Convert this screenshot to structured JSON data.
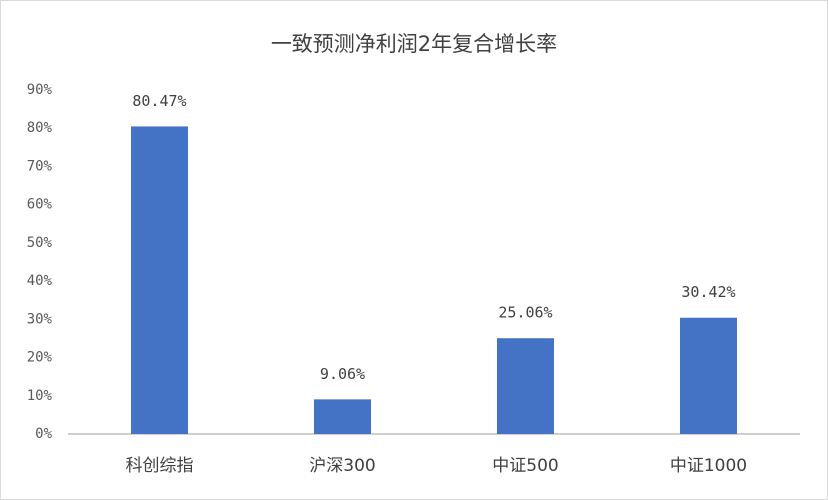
{
  "chart_data": {
    "type": "bar",
    "title": "一致预测净利润2年复合增长率",
    "categories": [
      "科创综指",
      "沪深300",
      "中证500",
      "中证1000"
    ],
    "values": [
      80.47,
      9.06,
      25.06,
      30.42
    ],
    "value_labels": [
      "80.47%",
      "9.06%",
      "25.06%",
      "30.42%"
    ],
    "color": "#4472c4",
    "ylim": [
      0,
      90
    ],
    "yticks": [
      {
        "value": 0,
        "label": "0%"
      },
      {
        "value": 10,
        "label": "10%"
      },
      {
        "value": 20,
        "label": "20%"
      },
      {
        "value": 30,
        "label": "30%"
      },
      {
        "value": 40,
        "label": "40%"
      },
      {
        "value": 50,
        "label": "50%"
      },
      {
        "value": 60,
        "label": "60%"
      },
      {
        "value": 70,
        "label": "70%"
      },
      {
        "value": 80,
        "label": "80%"
      },
      {
        "value": 90,
        "label": "90%"
      }
    ],
    "grid": false
  }
}
